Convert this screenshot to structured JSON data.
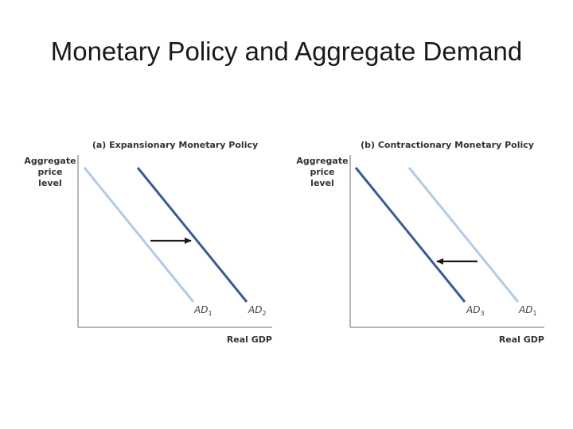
{
  "slide": {
    "title": "Monetary Policy and Aggregate Demand"
  },
  "colors": {
    "light_curve": "#b3cbe4",
    "dark_curve": "#3b5a98",
    "arrow": "#1a1a1a",
    "axis": "#888888",
    "text": "#333333"
  },
  "panels": [
    {
      "title": "(a) Expansionary Monetary Policy",
      "ylabel": [
        "Aggregate",
        "price",
        "level"
      ],
      "xlabel": "Real GDP",
      "curves": [
        {
          "label": "AD",
          "sub": "1",
          "style": "light"
        },
        {
          "label": "AD",
          "sub": "2",
          "style": "dark"
        }
      ],
      "shift": "right"
    },
    {
      "title": "(b) Contractionary Monetary Policy",
      "ylabel": [
        "Aggregate",
        "price",
        "level"
      ],
      "xlabel": "Real GDP",
      "curves": [
        {
          "label": "AD",
          "sub": "3",
          "style": "dark"
        },
        {
          "label": "AD",
          "sub": "1",
          "style": "light"
        }
      ],
      "shift": "left"
    }
  ]
}
